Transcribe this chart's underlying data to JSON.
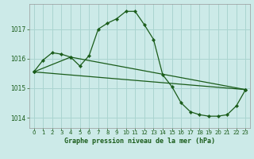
{
  "title": "Graphe pression niveau de la mer (hPa)",
  "background_color": "#cceae8",
  "grid_color": "#aad4d0",
  "line_color": "#1a5c1a",
  "marker_color": "#1a5c1a",
  "series1": {
    "x": [
      0,
      1,
      2,
      3,
      4,
      5,
      6,
      7,
      8,
      9,
      10,
      11,
      12,
      13,
      14,
      15,
      16,
      17,
      18,
      19,
      20,
      21,
      22,
      23
    ],
    "y": [
      1015.55,
      1015.95,
      1016.2,
      1016.15,
      1016.05,
      1015.75,
      1016.1,
      1017.0,
      1017.2,
      1017.35,
      1017.6,
      1017.6,
      1017.15,
      1016.65,
      1015.45,
      1015.05,
      1014.5,
      1014.2,
      1014.1,
      1014.05,
      1014.05,
      1014.1,
      1014.4,
      1014.95
    ]
  },
  "series2": {
    "x": [
      0,
      4,
      23
    ],
    "y": [
      1015.55,
      1016.05,
      1014.95
    ]
  },
  "series3": {
    "x": [
      0,
      23
    ],
    "y": [
      1015.55,
      1014.95
    ]
  },
  "ylim": [
    1013.65,
    1017.85
  ],
  "yticks": [
    1014,
    1015,
    1016,
    1017
  ],
  "xticks": [
    0,
    1,
    2,
    3,
    4,
    5,
    6,
    7,
    8,
    9,
    10,
    11,
    12,
    13,
    14,
    15,
    16,
    17,
    18,
    19,
    20,
    21,
    22,
    23
  ],
  "xlim": [
    -0.5,
    23.5
  ]
}
